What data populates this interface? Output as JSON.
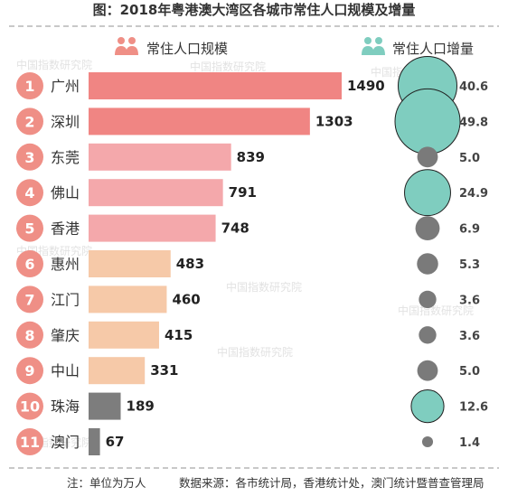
{
  "title": "图：2018年粤港澳大湾区各城市常住人口规模及增量",
  "watermark": "中国指数研究院",
  "colors": {
    "rank_circle": "#ef8f86",
    "top": "#f08583",
    "mid": "#f4a8ab",
    "low": "#f6c9a8",
    "small": "#7d7d7d",
    "bubble_green": "#7fcdbf",
    "bubble_gray": "#7a7a7a"
  },
  "chart_data": {
    "type": "bar",
    "title": "图：2018年粤港澳大湾区各城市常住人口规模及增量",
    "categories": [
      "广州",
      "深圳",
      "东莞",
      "佛山",
      "香港",
      "惠州",
      "江门",
      "肇庆",
      "中山",
      "珠海",
      "澳门"
    ],
    "series": [
      {
        "name": "常住人口规模",
        "values": [
          1490,
          1303,
          839,
          791,
          748,
          483,
          460,
          415,
          331,
          189,
          67
        ]
      },
      {
        "name": "常住人口增量",
        "values": [
          40.6,
          49.8,
          5.0,
          24.9,
          6.9,
          5.3,
          3.6,
          3.6,
          5.0,
          12.6,
          1.4
        ]
      }
    ],
    "increment_labels": [
      "40.6",
      "49.8",
      "5.0",
      "24.9",
      "6.9",
      "5.3",
      "3.6",
      "3.6",
      "5.0",
      "12.6",
      "1.4"
    ],
    "bubble_colors": [
      "green",
      "green",
      "gray",
      "green",
      "gray",
      "gray",
      "gray",
      "gray",
      "gray",
      "green",
      "gray"
    ],
    "bar_colors": [
      "top",
      "top",
      "mid",
      "mid",
      "mid",
      "low",
      "low",
      "low",
      "low",
      "small",
      "small"
    ],
    "xlim": [
      0,
      1490
    ]
  },
  "footer": {
    "note": "注：单位为万人",
    "source": "数据来源：各市统计局，香港统计处，澳门统计暨普查管理局"
  }
}
